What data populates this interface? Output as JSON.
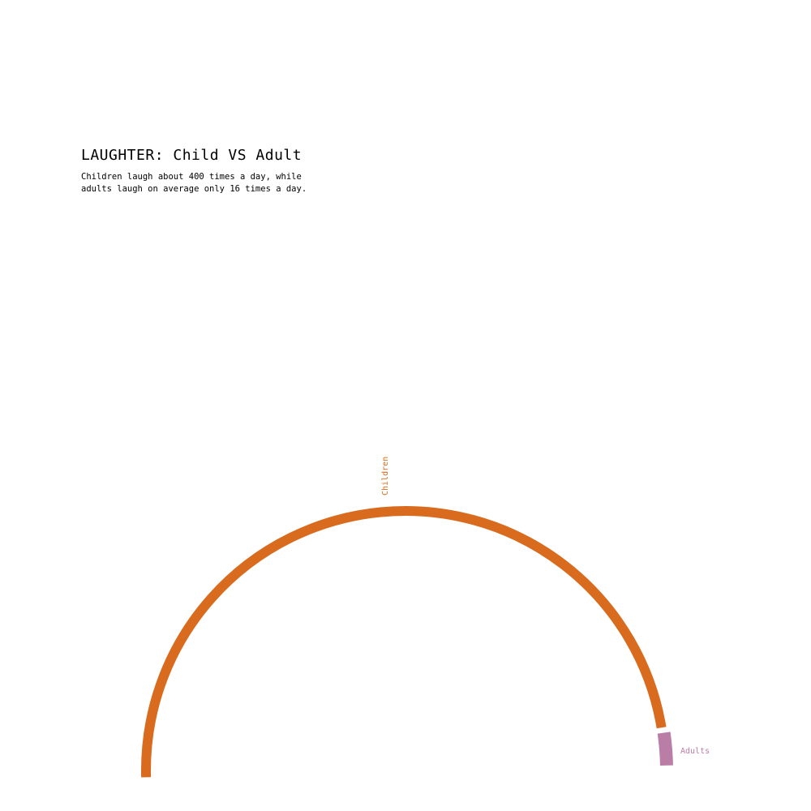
{
  "title": "LAUGHTER: Child VS Adult",
  "subtitle": "Children laugh about 400 times a day, while adults laugh on average only 16 times a day.",
  "colors": {
    "children": "#d96b1f",
    "adults": "#b97da6"
  },
  "chart_data": {
    "type": "radial-bar",
    "categories": [
      "Children",
      "Adults"
    ],
    "values": [
      400,
      16
    ],
    "title": "LAUGHTER: Child VS Adult",
    "subtitle": "Children laugh about 400 times a day, while adults laugh on average only 16 times a day.",
    "unit_of_value": "times a day"
  }
}
